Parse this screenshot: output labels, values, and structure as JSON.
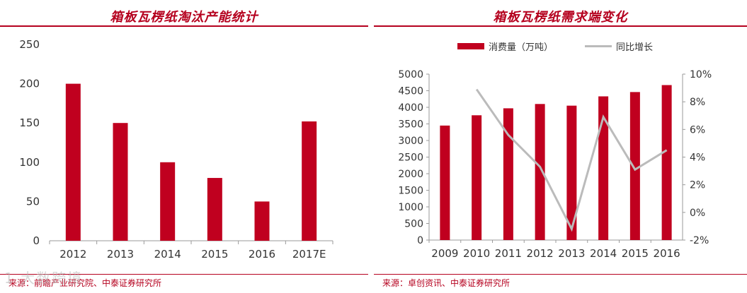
{
  "left": {
    "title": "箱板瓦楞纸淘汰产能统计",
    "source": "来源：前瞻产业研究院、中泰证券研究所"
  },
  "right": {
    "title": "箱板瓦楞纸需求端变化",
    "source": "来源：卓创资讯、中泰证券研究所"
  },
  "watermark": "1 大数跨境",
  "colors": {
    "accent": "#b5001e",
    "bar": "#c0001f",
    "line": "#bbbbbb"
  },
  "chart_data": [
    {
      "type": "bar",
      "title": "箱板瓦楞纸淘汰产能统计",
      "categories": [
        "2012",
        "2013",
        "2014",
        "2015",
        "2016",
        "2017E"
      ],
      "values": [
        200,
        150,
        100,
        80,
        50,
        152
      ],
      "ylim": [
        0,
        250
      ],
      "yticks": [
        0,
        50,
        100,
        150,
        200,
        250
      ],
      "grid": false
    },
    {
      "type": "bar",
      "title": "箱板瓦楞纸需求端变化",
      "categories": [
        "2009",
        "2010",
        "2011",
        "2012",
        "2013",
        "2014",
        "2015",
        "2016"
      ],
      "series": [
        {
          "name": "消费量（万吨）",
          "type": "bar",
          "axis": "left",
          "values": [
            3450,
            3760,
            3970,
            4100,
            4050,
            4330,
            4460,
            4670
          ]
        },
        {
          "name": "同比增长",
          "type": "line",
          "axis": "right",
          "values": [
            null,
            8.9,
            5.6,
            3.3,
            -1.2,
            6.9,
            3.1,
            4.5
          ]
        }
      ],
      "ylim": [
        0,
        5000
      ],
      "yticks": [
        0,
        500,
        1000,
        1500,
        2000,
        2500,
        3000,
        3500,
        4000,
        4500,
        5000
      ],
      "y2lim": [
        -2,
        10
      ],
      "y2ticks": [
        "-2%",
        "0%",
        "2%",
        "4%",
        "6%",
        "8%",
        "10%"
      ],
      "legend": "top",
      "grid": false
    }
  ]
}
